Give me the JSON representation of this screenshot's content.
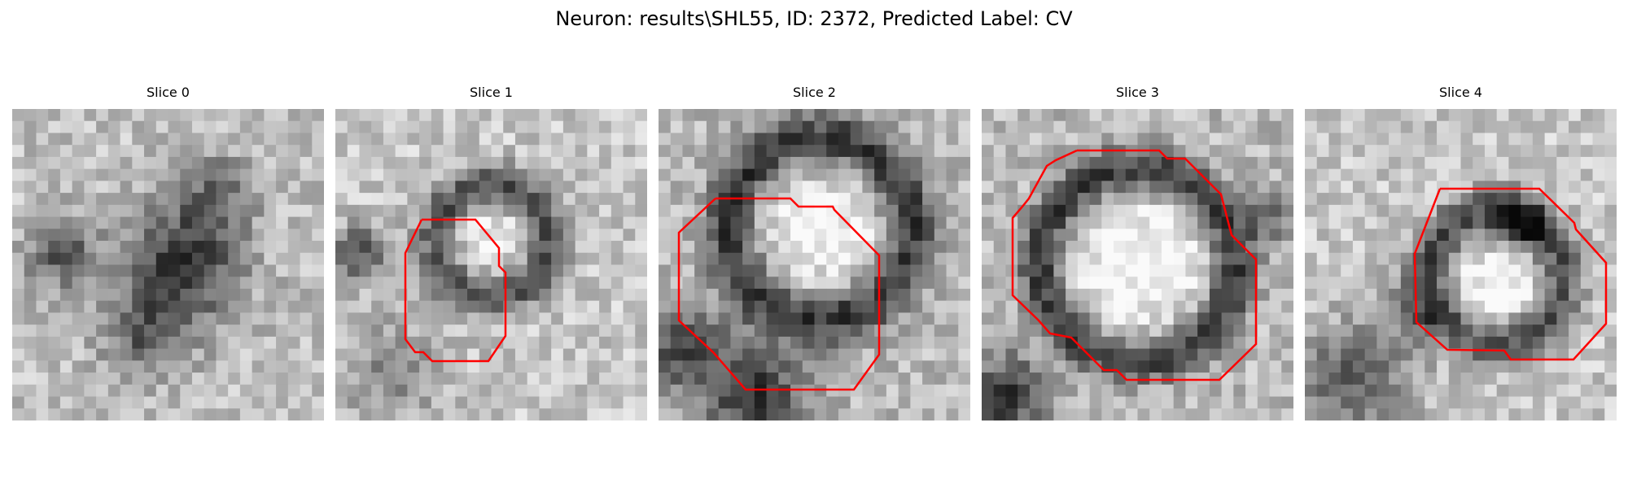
{
  "figure": {
    "title": "Neuron: results\\SHL55, ID: 2372, Predicted Label: CV"
  },
  "colors": {
    "contour": "#ff0000",
    "background": "#ffffff"
  },
  "panels": [
    {
      "title": "Slice 0",
      "has_contour": false,
      "seed": 11,
      "pattern": "blob"
    },
    {
      "title": "Slice 1",
      "has_contour": true,
      "seed": 23,
      "pattern": "ring_small"
    },
    {
      "title": "Slice 2",
      "has_contour": true,
      "seed": 37,
      "pattern": "ring_large"
    },
    {
      "title": "Slice 3",
      "has_contour": true,
      "seed": 41,
      "pattern": "ring_center"
    },
    {
      "title": "Slice 4",
      "has_contour": true,
      "seed": 53,
      "pattern": "ring_right"
    }
  ]
}
